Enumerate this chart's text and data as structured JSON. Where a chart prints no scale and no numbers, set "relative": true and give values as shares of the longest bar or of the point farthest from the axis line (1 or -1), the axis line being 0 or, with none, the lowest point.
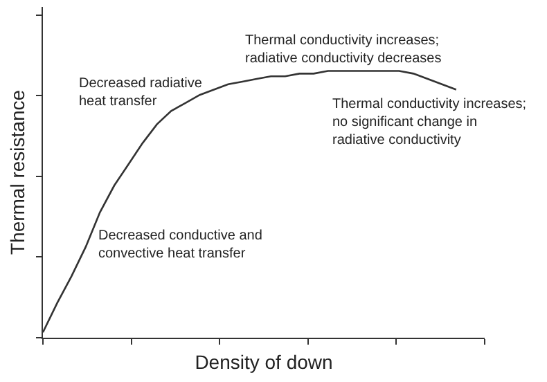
{
  "chart_data": {
    "type": "line",
    "relative": true,
    "xlabel": "Density of down",
    "ylabel": "Thermal resistance",
    "categories": [
      null,
      null,
      null,
      null,
      null,
      null,
      null,
      null,
      null,
      null,
      null,
      null,
      null,
      null,
      null,
      null,
      null,
      null,
      null,
      null,
      null,
      null,
      null,
      null,
      null,
      null,
      null,
      null,
      null,
      null,
      null,
      null
    ],
    "series": [
      {
        "color": "#333333",
        "values": [
          0.02,
          0.13,
          0.23,
          0.34,
          0.47,
          0.57,
          0.65,
          0.73,
          0.8,
          0.85,
          0.88,
          0.91,
          0.93,
          0.95,
          0.96,
          0.97,
          0.98,
          0.98,
          0.99,
          0.99,
          1,
          1,
          1,
          1,
          1,
          1,
          0.99,
          0.97,
          0.95,
          0.93,
          null,
          null
        ]
      }
    ],
    "annotations": [
      "Decreased conductive and\nconvective heat transfer",
      "Decreased radiative\nheat transfer",
      "Thermal conductivity increases;\nradiative conductivity decreases",
      "Thermal conductivity increases;\nno significant change in\nradiative conductivity"
    ],
    "grid": false,
    "marker": "none",
    "line_style": "solid"
  }
}
